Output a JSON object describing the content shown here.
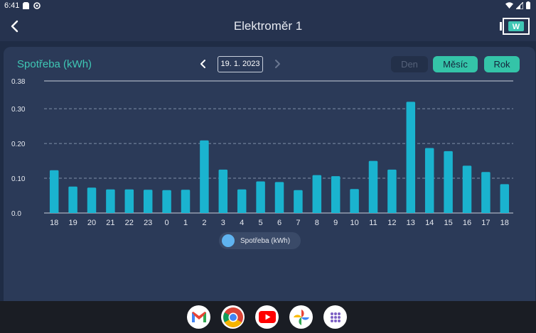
{
  "status_bar": {
    "time": "6:41"
  },
  "app_bar": {
    "title": "Elektroměr 1",
    "logo_letter": "W"
  },
  "panel": {
    "title": "Spotřeba (kWh)",
    "date": "19. 1. 2023",
    "periods": [
      {
        "label": "Den",
        "active": false
      },
      {
        "label": "Měsíc",
        "active": true
      },
      {
        "label": "Rok",
        "active": true
      }
    ]
  },
  "chart_data": {
    "type": "bar",
    "categories": [
      "18",
      "19",
      "20",
      "21",
      "22",
      "23",
      "0",
      "1",
      "2",
      "3",
      "4",
      "5",
      "6",
      "7",
      "8",
      "9",
      "10",
      "11",
      "12",
      "13",
      "14",
      "15",
      "16",
      "17",
      "18"
    ],
    "series": [
      {
        "name": "Spotřeba (kWh)",
        "values": [
          0.123,
          0.076,
          0.073,
          0.068,
          0.068,
          0.067,
          0.066,
          0.067,
          0.209,
          0.125,
          0.068,
          0.091,
          0.089,
          0.066,
          0.109,
          0.106,
          0.069,
          0.15,
          0.125,
          0.32,
          0.187,
          0.178,
          0.136,
          0.118,
          0.083
        ]
      }
    ],
    "y_ticks": [
      "0.0",
      "0.10",
      "0.20",
      "0.30",
      "0.38"
    ],
    "ylim": [
      0,
      0.38
    ],
    "grid": true,
    "legend": "bottom-center",
    "bar_color": "#1ab3cf"
  },
  "dock": {
    "apps": [
      {
        "name": "gmail-icon"
      },
      {
        "name": "chrome-icon"
      },
      {
        "name": "youtube-icon"
      },
      {
        "name": "photos-icon"
      },
      {
        "name": "app-drawer-icon"
      }
    ]
  }
}
